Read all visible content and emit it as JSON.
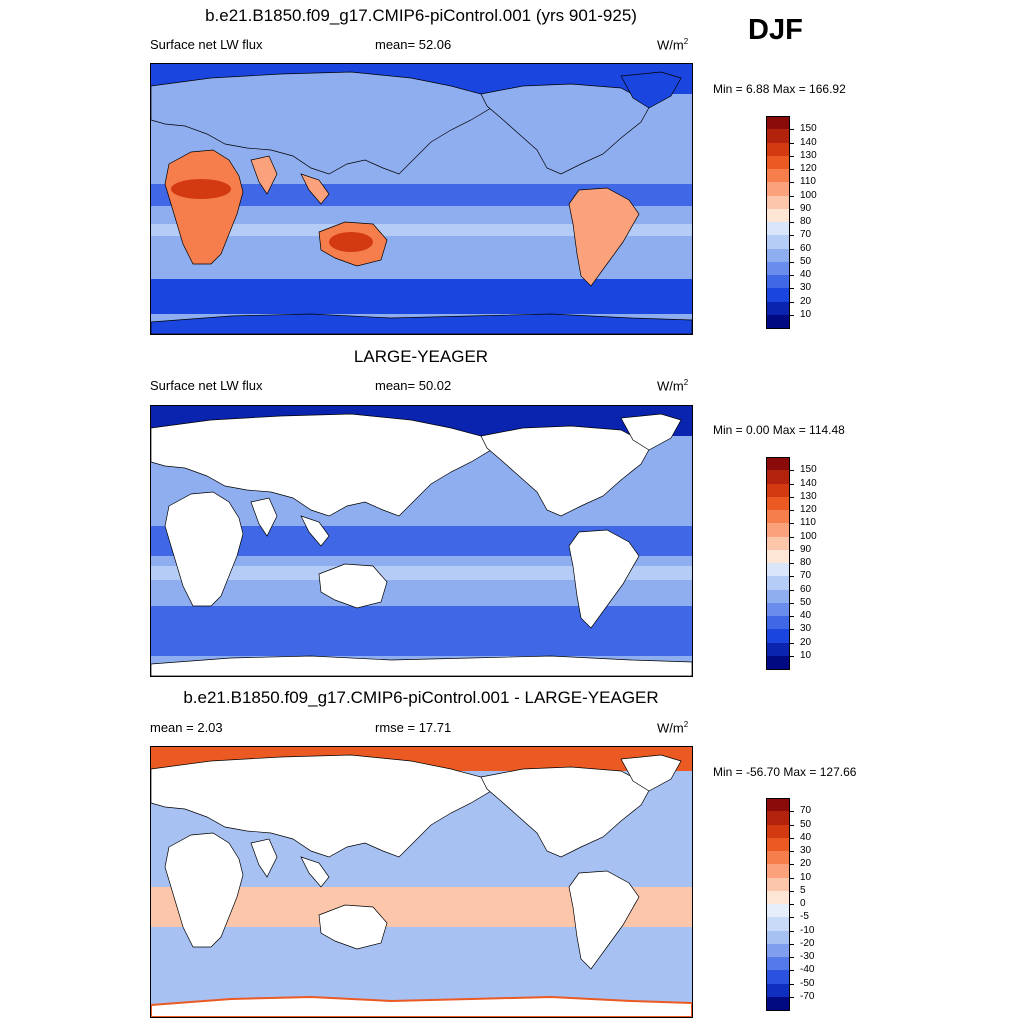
{
  "season": "DJF",
  "panels": [
    {
      "title": "b.e21.B1850.f09_g17.CMIP6-piControl.001 (yrs 901-925)",
      "left_label": "Surface net LW flux",
      "center_label": "mean=  52.06",
      "units": "W/m",
      "units_sup": "2",
      "minmax": "Min =   6.88 Max = 166.92",
      "colorbar": {
        "labels": [
          "150",
          "140",
          "130",
          "120",
          "110",
          "100",
          "90",
          "80",
          "70",
          "60",
          "50",
          "40",
          "30",
          "20",
          "10"
        ],
        "colors": [
          "#8b0a0a",
          "#b3220c",
          "#d33a12",
          "#ea5a22",
          "#f57e4c",
          "#fba27c",
          "#fcc6ab",
          "#fde6d6",
          "#d9e6fa",
          "#b5cdf6",
          "#8faef0",
          "#6a8cec",
          "#4068e6",
          "#1a45de",
          "#0a24b0",
          "#010a80"
        ]
      },
      "field": "control"
    },
    {
      "title": "LARGE-YEAGER",
      "left_label": "Surface net LW flux",
      "center_label": "mean=  50.02",
      "units": "W/m",
      "units_sup": "2",
      "minmax": "Min =   0.00 Max = 114.48",
      "colorbar": {
        "labels": [
          "150",
          "140",
          "130",
          "120",
          "110",
          "100",
          "90",
          "80",
          "70",
          "60",
          "50",
          "40",
          "30",
          "20",
          "10"
        ],
        "colors": [
          "#8b0a0a",
          "#b3220c",
          "#d33a12",
          "#ea5a22",
          "#f57e4c",
          "#fba27c",
          "#fcc6ab",
          "#fde6d6",
          "#d9e6fa",
          "#b5cdf6",
          "#8faef0",
          "#6a8cec",
          "#4068e6",
          "#1a45de",
          "#0a24b0",
          "#010a80"
        ]
      },
      "field": "ocean"
    },
    {
      "title": "b.e21.B1850.f09_g17.CMIP6-piControl.001 - LARGE-YEAGER",
      "left_label": "mean =   2.03",
      "center_label": "rmse =  17.71",
      "units": "W/m",
      "units_sup": "2",
      "minmax": "Min = -56.70 Max = 127.66",
      "colorbar": {
        "labels": [
          "70",
          "50",
          "40",
          "30",
          "20",
          "10",
          "5",
          "0",
          "-5",
          "-10",
          "-20",
          "-30",
          "-40",
          "-50",
          "-70"
        ],
        "colors": [
          "#8b0a0a",
          "#b3220c",
          "#d33a12",
          "#ea5a22",
          "#f57e4c",
          "#fba27c",
          "#fcc6ab",
          "#fde6d6",
          "#e6eefb",
          "#c9daf8",
          "#a7c1f3",
          "#7f9fee",
          "#5479e8",
          "#2a52df",
          "#0f2fc0",
          "#010a80"
        ]
      },
      "field": "diff"
    }
  ],
  "map_colors": {
    "ocean_deep": "#1a45de",
    "ocean_mid": "#4068e6",
    "ocean_light": "#8faef0",
    "ocean_pale": "#b5cdf6",
    "land_warm": "#f57e4c",
    "land_hot": "#d33a12",
    "land_mild": "#fba27c",
    "ice_blue": "#0a24b0",
    "white": "#ffffff",
    "diff_red": "#ea5a22",
    "diff_pale": "#fcc6ab",
    "diff_blue": "#a7c1f3"
  }
}
